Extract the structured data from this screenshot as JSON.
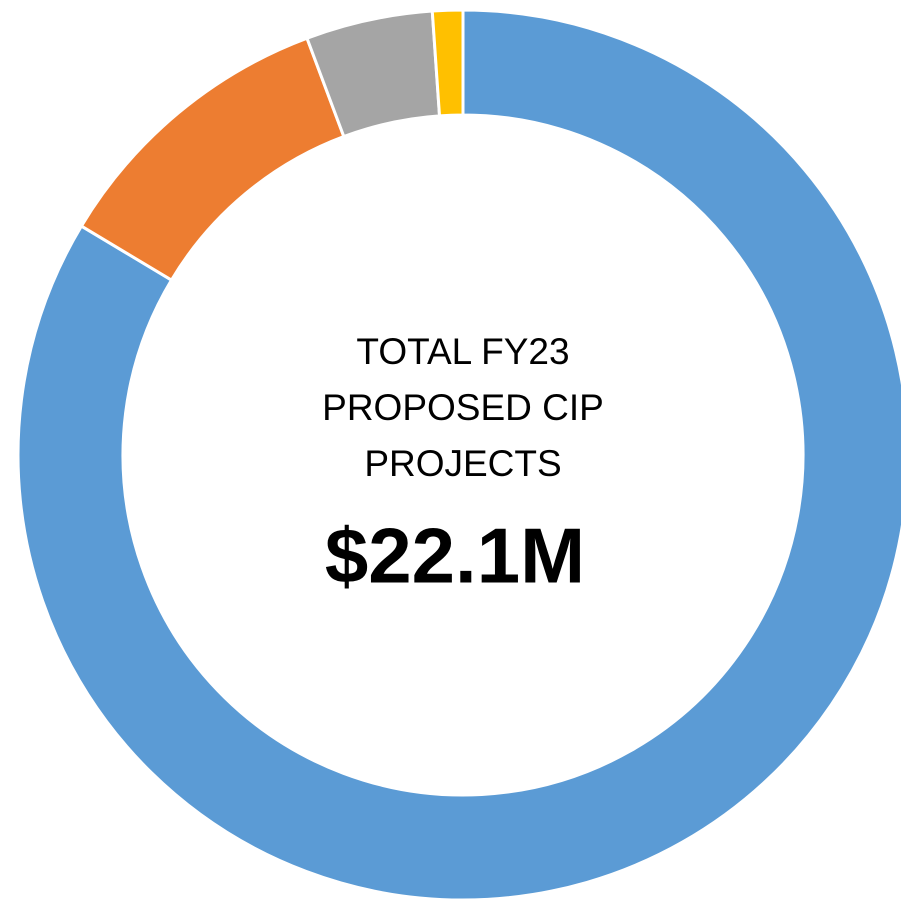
{
  "chart_data": {
    "type": "donut",
    "categories": [
      null,
      null,
      null,
      null
    ],
    "values": [
      83.6,
      10.7,
      4.6,
      1.1
    ],
    "colors": [
      "#5b9bd5",
      "#ed7d31",
      "#a5a5a5",
      "#ffc000"
    ],
    "center_label": [
      "TOTAL FY23",
      "PROPOSED CIP",
      "PROJECTS"
    ],
    "center_value": "$22.1M"
  }
}
